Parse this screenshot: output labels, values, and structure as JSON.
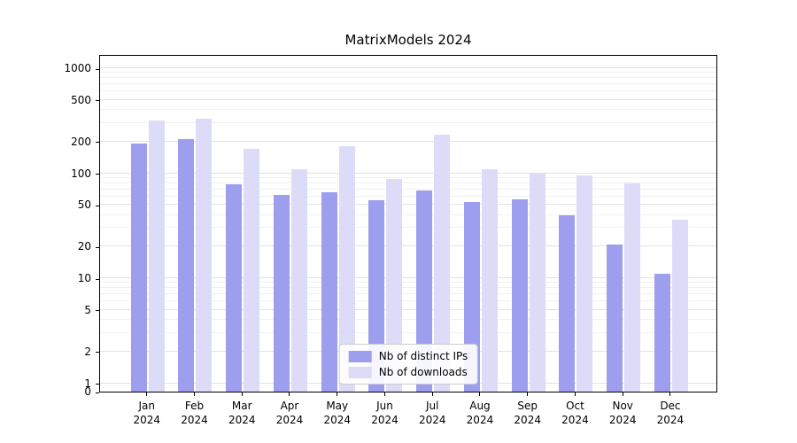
{
  "chart_data": {
    "type": "bar",
    "title": "MatrixModels 2024",
    "categories": [
      "Jan 2024",
      "Feb 2024",
      "Mar 2024",
      "Apr 2024",
      "May 2024",
      "Jun 2024",
      "Jul 2024",
      "Aug 2024",
      "Sep 2024",
      "Oct 2024",
      "Nov 2024",
      "Dec 2024"
    ],
    "series": [
      {
        "name": "Nb of distinct IPs",
        "color": "#9e9eee",
        "values": [
          190,
          210,
          78,
          62,
          66,
          55,
          68,
          53,
          56,
          40,
          21,
          11
        ]
      },
      {
        "name": "Nb of downloads",
        "color": "#dcdcf8",
        "values": [
          320,
          330,
          170,
          110,
          180,
          88,
          235,
          110,
          100,
          95,
          80,
          36
        ]
      }
    ],
    "xlabel": "",
    "ylabel": "",
    "yscale": "symlog",
    "ylim": [
      0,
      1000
    ],
    "yticks": [
      0,
      1,
      2,
      5,
      10,
      20,
      50,
      100,
      200,
      500,
      1000
    ],
    "grid": "horizontal",
    "legend_position": "lower center"
  }
}
